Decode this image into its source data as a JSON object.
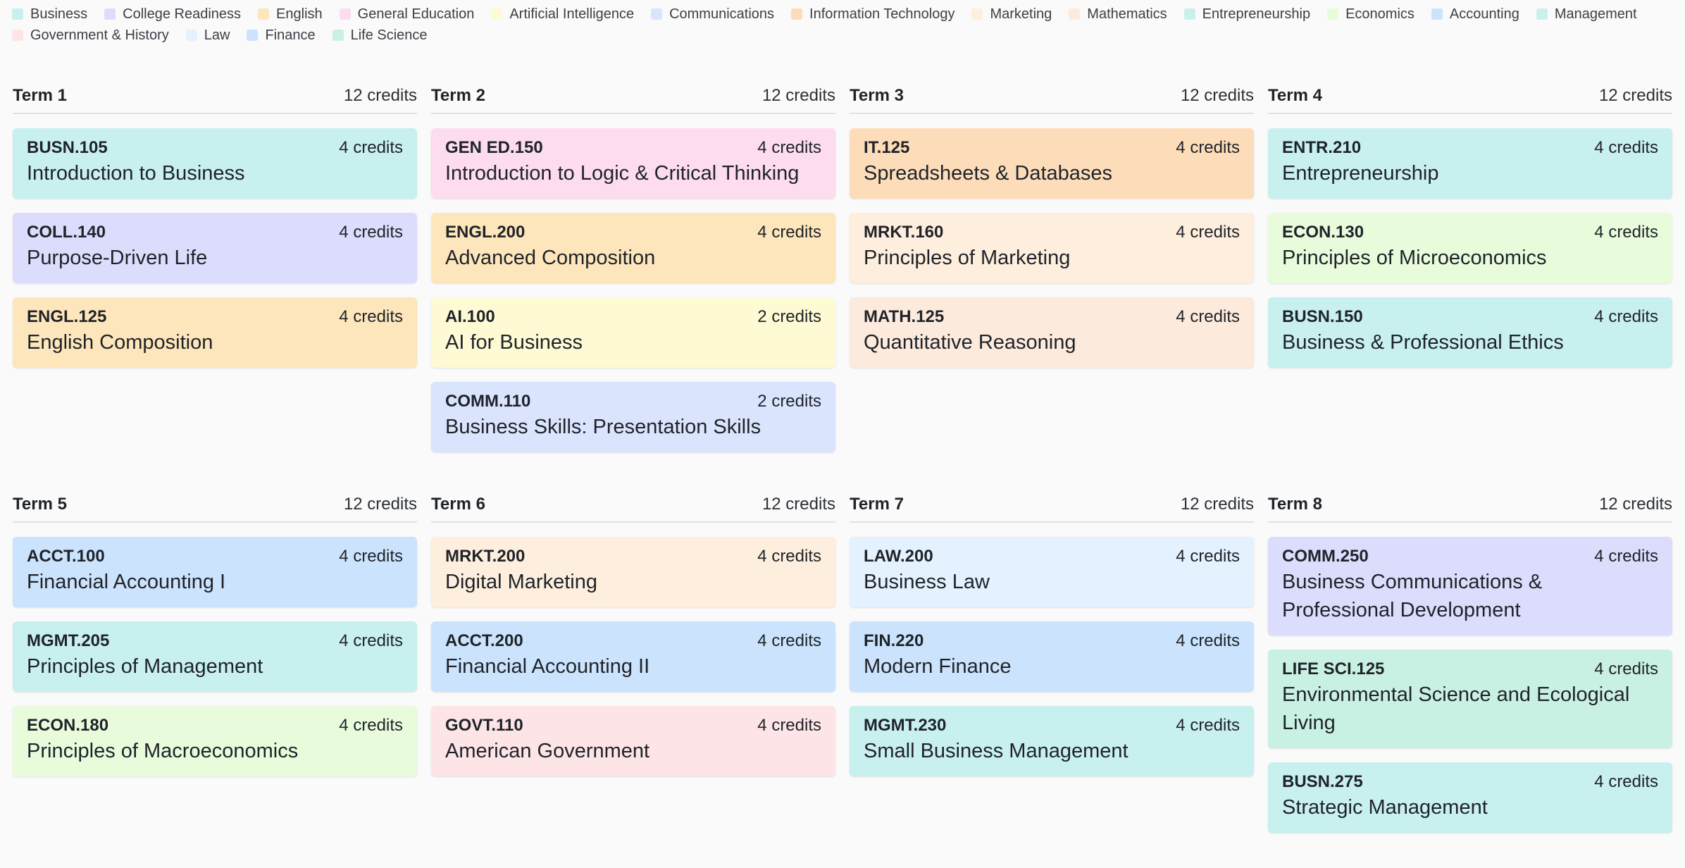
{
  "legend": [
    {
      "label": "Business",
      "color": "#c8f0ee"
    },
    {
      "label": "College Readiness",
      "color": "#dcdcfc"
    },
    {
      "label": "English",
      "color": "#fde6bb"
    },
    {
      "label": "General Education",
      "color": "#fcdcee"
    },
    {
      "label": "Artificial Intelligence",
      "color": "#fefad4"
    },
    {
      "label": "Communications",
      "color": "#dbe4fd"
    },
    {
      "label": "Information Technology",
      "color": "#fddcba"
    },
    {
      "label": "Marketing",
      "color": "#feeedd"
    },
    {
      "label": "Mathematics",
      "color": "#fceadc"
    },
    {
      "label": "Entrepreneurship",
      "color": "#c8f0ee"
    },
    {
      "label": "Economics",
      "color": "#e8fcdc"
    },
    {
      "label": "Accounting",
      "color": "#cbe3fc"
    },
    {
      "label": "Management",
      "color": "#c8f0ee"
    },
    {
      "label": "Government & History",
      "color": "#fde4e7"
    },
    {
      "label": "Law",
      "color": "#e4f1fe"
    },
    {
      "label": "Finance",
      "color": "#cbe3fc"
    },
    {
      "label": "Life Science",
      "color": "#c9f1e3"
    }
  ],
  "terms": [
    {
      "name": "Term 1",
      "credits": "12 credits",
      "courses": [
        {
          "code": "BUSN.105",
          "credits": "4 credits",
          "title": "Introduction to Business",
          "color": "#c8f0ee"
        },
        {
          "code": "COLL.140",
          "credits": "4 credits",
          "title": "Purpose-Driven Life",
          "color": "#dcdcfc"
        },
        {
          "code": "ENGL.125",
          "credits": "4 credits",
          "title": "English Composition",
          "color": "#fde6bb"
        }
      ]
    },
    {
      "name": "Term 2",
      "credits": "12 credits",
      "courses": [
        {
          "code": "GEN ED.150",
          "credits": "4 credits",
          "title": "Introduction to Logic & Critical Thinking",
          "color": "#fcdcee"
        },
        {
          "code": "ENGL.200",
          "credits": "4 credits",
          "title": "Advanced Composition",
          "color": "#fde6bb"
        },
        {
          "code": "AI.100",
          "credits": "2 credits",
          "title": "AI for Business",
          "color": "#fefad4"
        },
        {
          "code": "COMM.110",
          "credits": "2 credits",
          "title": "Business Skills: Presentation Skills",
          "color": "#dbe4fd"
        }
      ]
    },
    {
      "name": "Term 3",
      "credits": "12 credits",
      "courses": [
        {
          "code": "IT.125",
          "credits": "4 credits",
          "title": "Spreadsheets & Databases",
          "color": "#fddcba"
        },
        {
          "code": "MRKT.160",
          "credits": "4 credits",
          "title": "Principles of Marketing",
          "color": "#feeedd"
        },
        {
          "code": "MATH.125",
          "credits": "4 credits",
          "title": "Quantitative Reasoning",
          "color": "#fceadc"
        }
      ]
    },
    {
      "name": "Term 4",
      "credits": "12 credits",
      "courses": [
        {
          "code": "ENTR.210",
          "credits": "4 credits",
          "title": "Entrepreneurship",
          "color": "#c8f0ee"
        },
        {
          "code": "ECON.130",
          "credits": "4 credits",
          "title": "Principles of Microeconomics",
          "color": "#e8fcdc"
        },
        {
          "code": "BUSN.150",
          "credits": "4 credits",
          "title": "Business & Professional Ethics",
          "color": "#c8f0ee"
        }
      ]
    },
    {
      "name": "Term 5",
      "credits": "12 credits",
      "courses": [
        {
          "code": "ACCT.100",
          "credits": "4 credits",
          "title": "Financial Accounting I",
          "color": "#cbe3fc"
        },
        {
          "code": "MGMT.205",
          "credits": "4 credits",
          "title": "Principles of Management",
          "color": "#c8f0ee"
        },
        {
          "code": "ECON.180",
          "credits": "4 credits",
          "title": "Principles of Macroeconomics",
          "color": "#e8fcdc"
        }
      ]
    },
    {
      "name": "Term 6",
      "credits": "12 credits",
      "courses": [
        {
          "code": "MRKT.200",
          "credits": "4 credits",
          "title": "Digital Marketing",
          "color": "#feeedd"
        },
        {
          "code": "ACCT.200",
          "credits": "4 credits",
          "title": "Financial Accounting II",
          "color": "#cbe3fc"
        },
        {
          "code": "GOVT.110",
          "credits": "4 credits",
          "title": "American Government",
          "color": "#fde4e7"
        }
      ]
    },
    {
      "name": "Term 7",
      "credits": "12 credits",
      "courses": [
        {
          "code": "LAW.200",
          "credits": "4 credits",
          "title": "Business Law",
          "color": "#e4f1fe"
        },
        {
          "code": "FIN.220",
          "credits": "4 credits",
          "title": "Modern Finance",
          "color": "#cbe3fc"
        },
        {
          "code": "MGMT.230",
          "credits": "4 credits",
          "title": "Small Business Management",
          "color": "#c8f0ee"
        }
      ]
    },
    {
      "name": "Term 8",
      "credits": "12 credits",
      "courses": [
        {
          "code": "COMM.250",
          "credits": "4 credits",
          "title": "Business Communications & Professional Development",
          "color": "#dcdcfc"
        },
        {
          "code": "LIFE SCI.125",
          "credits": "4 credits",
          "title": "Environmental Science and Ecological Living",
          "color": "#c9f1e3"
        },
        {
          "code": "BUSN.275",
          "credits": "4 credits",
          "title": "Strategic Management",
          "color": "#c8f0ee"
        }
      ]
    }
  ]
}
